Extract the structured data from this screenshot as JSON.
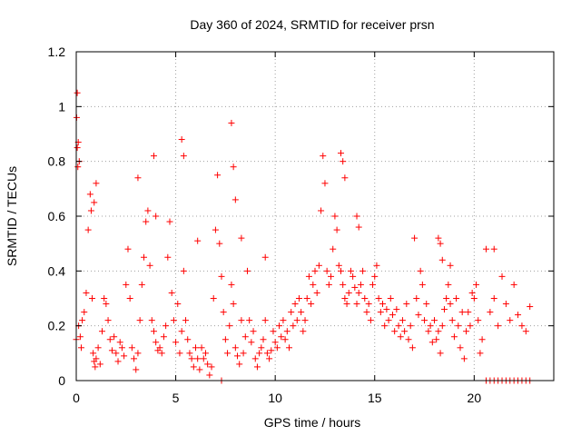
{
  "chart_data": {
    "type": "scatter",
    "title": "Day 360 of 2024, SRMTID for receiver prsn",
    "xlabel": "GPS time / hours",
    "ylabel": "SRMTID / TECUs",
    "xlim": [
      0,
      24
    ],
    "ylim": [
      0,
      1.2
    ],
    "x_ticks": [
      0,
      5,
      10,
      15,
      20
    ],
    "x_tick_labels": [
      "0",
      "5",
      "10",
      "15",
      "20"
    ],
    "y_ticks": [
      0,
      0.2,
      0.4,
      0.6,
      0.8,
      1.0,
      1.2
    ],
    "y_tick_labels": [
      "0",
      "0.2",
      "0.4",
      "0.6",
      "0.8",
      "1",
      "1.2"
    ],
    "grid": true,
    "marker": "plus",
    "color": "#ff0000",
    "series": [
      {
        "name": "SRMTID",
        "x": [
          0.0,
          0.05,
          0.1,
          0.15,
          0.2,
          0.25,
          0.3,
          0.4,
          0.5,
          0.6,
          0.7,
          0.75,
          0.8,
          0.85,
          0.9,
          0.95,
          1.0,
          1.1,
          1.2,
          1.3,
          1.4,
          1.5,
          1.6,
          1.7,
          1.8,
          1.9,
          2.0,
          2.1,
          2.2,
          2.3,
          2.4,
          2.5,
          2.6,
          2.7,
          2.8,
          2.9,
          3.0,
          3.1,
          3.2,
          3.3,
          3.4,
          3.5,
          3.6,
          3.7,
          3.8,
          3.9,
          4.0,
          4.1,
          4.2,
          4.3,
          4.4,
          4.5,
          4.6,
          4.7,
          4.8,
          4.9,
          5.0,
          5.1,
          5.2,
          5.3,
          5.4,
          5.5,
          5.6,
          5.7,
          5.8,
          5.9,
          6.0,
          6.1,
          6.2,
          6.3,
          6.4,
          6.5,
          6.6,
          6.7,
          6.8,
          6.9,
          7.0,
          7.1,
          7.2,
          7.3,
          7.4,
          7.5,
          7.6,
          7.7,
          7.8,
          7.9,
          8.0,
          8.1,
          8.2,
          8.3,
          8.4,
          8.5,
          8.6,
          8.7,
          8.8,
          8.9,
          9.0,
          9.1,
          9.2,
          9.3,
          9.4,
          9.5,
          9.6,
          9.7,
          9.8,
          9.9,
          10.0,
          10.1,
          10.2,
          10.3,
          10.4,
          10.5,
          10.6,
          10.7,
          10.8,
          10.9,
          11.0,
          11.1,
          11.2,
          11.3,
          11.4,
          11.5,
          11.6,
          11.7,
          11.8,
          11.9,
          12.0,
          12.1,
          12.2,
          12.3,
          12.4,
          12.5,
          12.6,
          12.7,
          12.8,
          12.9,
          13.0,
          13.1,
          13.2,
          13.3,
          13.4,
          13.5,
          13.6,
          13.7,
          13.8,
          13.9,
          14.0,
          14.1,
          14.2,
          14.3,
          14.4,
          14.5,
          14.6,
          14.7,
          14.8,
          14.9,
          15.0,
          15.1,
          15.2,
          15.3,
          15.4,
          15.5,
          15.6,
          15.7,
          15.8,
          15.9,
          16.0,
          16.1,
          16.2,
          16.3,
          16.4,
          16.5,
          16.6,
          16.7,
          16.8,
          16.9,
          17.0,
          17.1,
          17.2,
          17.3,
          17.4,
          17.5,
          17.6,
          17.7,
          17.8,
          17.9,
          18.0,
          18.1,
          18.2,
          18.3,
          18.4,
          18.5,
          18.6,
          18.7,
          18.8,
          18.9,
          19.0,
          19.1,
          19.2,
          19.3,
          19.4,
          19.5,
          19.6,
          19.7,
          19.8,
          19.9,
          20.0,
          20.1,
          20.2,
          20.3,
          20.4,
          20.6,
          20.8,
          21.0,
          21.2,
          21.4,
          21.6,
          21.8,
          22.0,
          22.2,
          22.4,
          22.6,
          22.8,
          20.6,
          20.8,
          21.0,
          21.2,
          21.4,
          21.6,
          21.8,
          22.0,
          22.2,
          22.4,
          22.6,
          22.8,
          0.02,
          0.05,
          0.08,
          0.12,
          0.9,
          1.0,
          3.1,
          3.9,
          4.0,
          5.3,
          5.4,
          6.1,
          7.8,
          7.9,
          8.0,
          8.3,
          9.5,
          13.3,
          13.4,
          13.5,
          14.1,
          14.2,
          18.2,
          18.3,
          18.4,
          18.8,
          21.0,
          7.3
        ],
        "y": [
          0.15,
          1.05,
          0.87,
          0.8,
          0.16,
          0.12,
          0.22,
          0.25,
          0.32,
          0.55,
          0.68,
          0.62,
          0.3,
          0.1,
          0.07,
          0.05,
          0.08,
          0.12,
          0.06,
          0.18,
          0.3,
          0.28,
          0.22,
          0.15,
          0.11,
          0.16,
          0.1,
          0.07,
          0.14,
          0.12,
          0.09,
          0.35,
          0.48,
          0.3,
          0.12,
          0.08,
          0.04,
          0.1,
          0.22,
          0.35,
          0.45,
          0.58,
          0.62,
          0.42,
          0.22,
          0.18,
          0.14,
          0.11,
          0.12,
          0.1,
          0.16,
          0.2,
          0.45,
          0.58,
          0.32,
          0.22,
          0.14,
          0.28,
          0.1,
          0.18,
          0.4,
          0.22,
          0.15,
          0.1,
          0.08,
          0.05,
          0.12,
          0.08,
          0.04,
          0.12,
          0.08,
          0.1,
          0.06,
          0.02,
          0.05,
          0.3,
          0.55,
          0.75,
          0.5,
          0.38,
          0.25,
          0.15,
          0.1,
          0.2,
          0.35,
          0.28,
          0.12,
          0.09,
          0.06,
          0.22,
          0.1,
          0.16,
          0.4,
          0.22,
          0.14,
          0.18,
          0.08,
          0.05,
          0.1,
          0.12,
          0.15,
          0.22,
          0.1,
          0.08,
          0.11,
          0.18,
          0.14,
          0.12,
          0.2,
          0.16,
          0.22,
          0.15,
          0.18,
          0.12,
          0.25,
          0.2,
          0.28,
          0.22,
          0.3,
          0.25,
          0.18,
          0.22,
          0.3,
          0.38,
          0.28,
          0.35,
          0.4,
          0.32,
          0.42,
          0.62,
          0.82,
          0.72,
          0.4,
          0.35,
          0.38,
          0.48,
          0.6,
          0.55,
          0.42,
          0.4,
          0.35,
          0.3,
          0.28,
          0.32,
          0.4,
          0.38,
          0.34,
          0.28,
          0.32,
          0.35,
          0.4,
          0.3,
          0.25,
          0.28,
          0.22,
          0.35,
          0.38,
          0.42,
          0.3,
          0.25,
          0.28,
          0.2,
          0.26,
          0.22,
          0.3,
          0.24,
          0.18,
          0.26,
          0.2,
          0.16,
          0.22,
          0.18,
          0.28,
          0.15,
          0.2,
          0.12,
          0.52,
          0.3,
          0.24,
          0.4,
          0.35,
          0.22,
          0.28,
          0.18,
          0.2,
          0.14,
          0.22,
          0.15,
          0.18,
          0.1,
          0.2,
          0.26,
          0.3,
          0.35,
          0.28,
          0.22,
          0.16,
          0.3,
          0.2,
          0.12,
          0.25,
          0.08,
          0.18,
          0.25,
          0.2,
          0.32,
          0.3,
          0.35,
          0.22,
          0.1,
          0.15,
          0.48,
          0.25,
          0.3,
          0.2,
          0.38,
          0.28,
          0.22,
          0.35,
          0.24,
          0.2,
          0.18,
          0.27,
          0.0,
          0.0,
          0.0,
          0.0,
          0.0,
          0.0,
          0.0,
          0.0,
          0.0,
          0.0,
          0.0,
          0.0,
          0.96,
          0.85,
          0.78,
          0.2,
          0.65,
          0.72,
          0.74,
          0.82,
          0.6,
          0.88,
          0.82,
          0.51,
          0.94,
          0.78,
          0.66,
          0.52,
          0.45,
          0.83,
          0.8,
          0.74,
          0.6,
          0.56,
          0.52,
          0.5,
          0.44,
          0.42,
          0.48,
          0.0
        ]
      }
    ]
  }
}
